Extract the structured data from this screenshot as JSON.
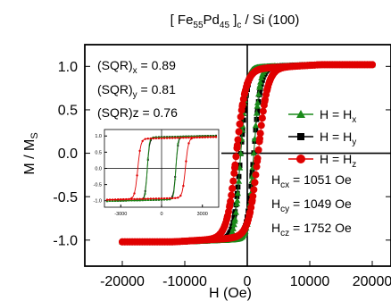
{
  "chart_data": [
    {
      "type": "scatter",
      "title_parts": {
        "open": "[ Fe",
        "sub1": "55",
        "mid": "Pd",
        "sub2": "45",
        "close": " ]",
        "sub3": "c",
        "after": " / Si (100)"
      },
      "xlabel": "H (Oe)",
      "ylabel_main": "M / M",
      "ylabel_sub": "S",
      "xlim": [
        -26000,
        23000
      ],
      "ylim": [
        -1.3,
        1.25
      ],
      "x_ticks": [
        -20000,
        -10000,
        0,
        10000,
        20000
      ],
      "x_tick_labels": [
        "-20000",
        "-10000",
        "0",
        "10000",
        "20000"
      ],
      "y_ticks": [
        -1.0,
        -0.5,
        0.0,
        0.5,
        1.0
      ],
      "y_tick_labels": [
        "-1.0",
        "-0.5",
        "0.0",
        "0.5",
        "1.0"
      ],
      "colors": {
        "x": "#1a8a1a",
        "y": "#000000",
        "z": "#e00000",
        "axis": "#000000"
      },
      "legend": {
        "placement": "right",
        "items": [
          {
            "key": "x",
            "label": "H = H",
            "sub": "x",
            "marker": "triangle"
          },
          {
            "key": "y",
            "label": "H = H",
            "sub": "y",
            "marker": "square"
          },
          {
            "key": "z",
            "label": "H = H",
            "sub": "z",
            "marker": "circle"
          }
        ]
      },
      "annotations": {
        "sqr": [
          {
            "label": "(SQR)",
            "sub": "x",
            "value": " = 0.89"
          },
          {
            "label": "(SQR)",
            "sub": "y",
            "value": " = 0.81"
          },
          {
            "label": "(SQR)z = 0.76",
            "sub": "",
            "value": ""
          }
        ],
        "coercivity": [
          {
            "label": "H",
            "sub": "cx",
            "value": " = 1051 Oe"
          },
          {
            "label": "H",
            "sub": "cy",
            "value": " = 1049 Oe"
          },
          {
            "label": "H",
            "sub": "cz",
            "value": " = 1752 Oe"
          }
        ]
      },
      "series": [
        {
          "key": "x",
          "marker": "triangle",
          "hc": 1051,
          "sqr": 0.89
        },
        {
          "key": "y",
          "marker": "square",
          "hc": 1049,
          "sqr": 0.81
        },
        {
          "key": "z",
          "marker": "circle",
          "hc": 1752,
          "sqr": 0.76
        }
      ]
    },
    {
      "type": "scatter",
      "role": "inset",
      "xlim": [
        -4200,
        4200
      ],
      "ylim": [
        -1.2,
        1.2
      ],
      "x_ticks": [
        -3000,
        0,
        3000
      ],
      "x_tick_labels": [
        "-3000",
        "0",
        "3000"
      ],
      "y_ticks": [
        -1.0,
        -0.5,
        0.0,
        0.5,
        1.0
      ],
      "y_tick_labels": [
        "-1.0",
        "-0.5",
        "0.0",
        "0.5",
        "1.0"
      ]
    }
  ]
}
